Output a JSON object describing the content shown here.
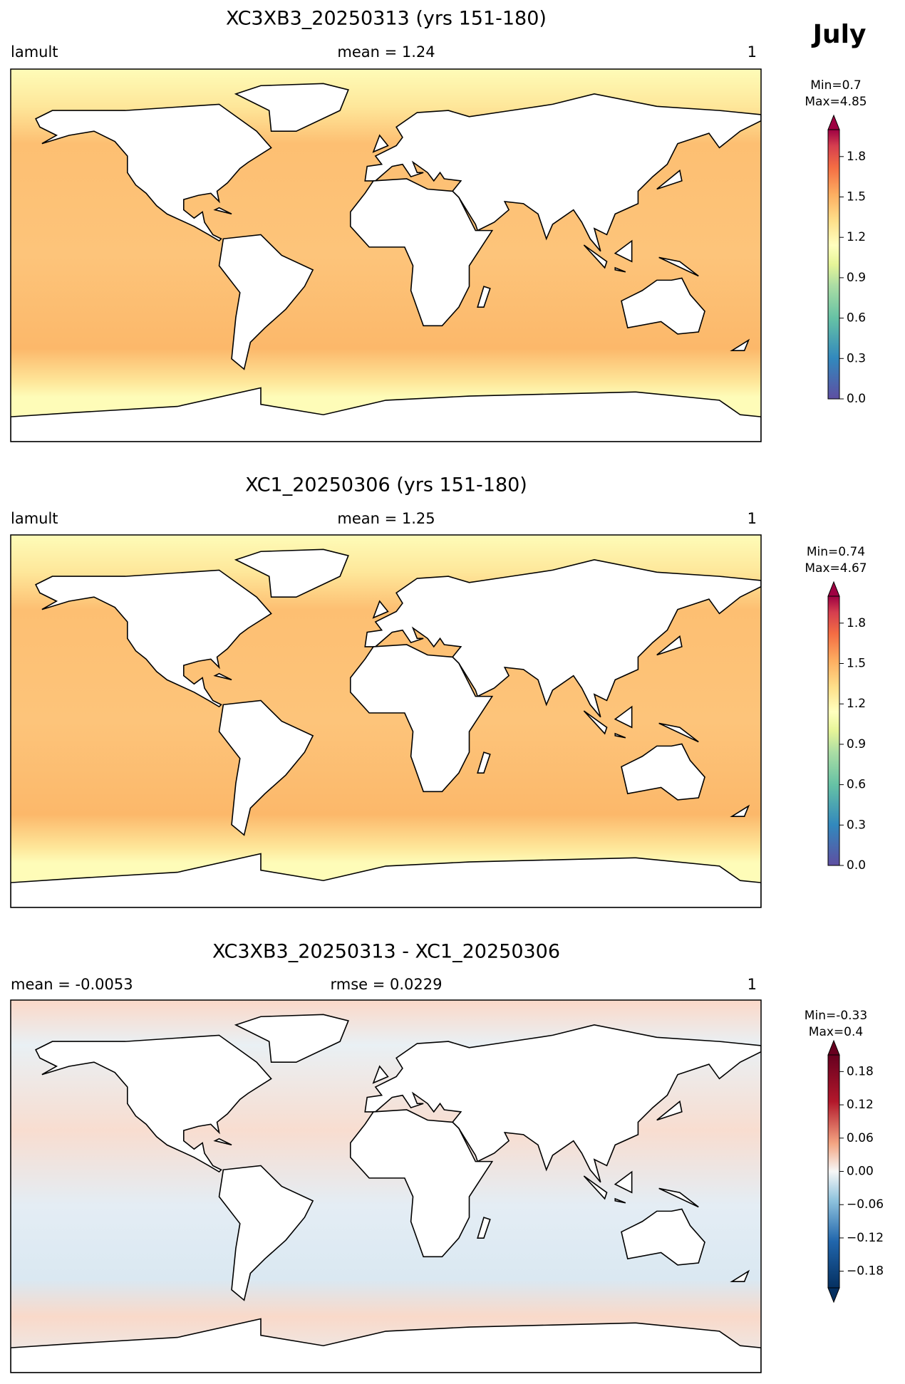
{
  "figure_label": "July",
  "panels": [
    {
      "title": "XC3XB3_20250313 (yrs 151-180)",
      "left_label": "lamult",
      "center_label": "mean = 1.24",
      "right_label": "1",
      "min_label": "Min=0.7",
      "max_label": "Max=4.85",
      "colorbar": {
        "clim": [
          0,
          2
        ],
        "extend": "max",
        "colormap": "spectral",
        "ticks": [
          {
            "value": 0,
            "label": "0.0"
          },
          0.3,
          0.6,
          0.9,
          1.2,
          1.5,
          1.8
        ]
      }
    },
    {
      "title": "XC1_20250306 (yrs 151-180)",
      "left_label": "lamult",
      "center_label": "mean = 1.25",
      "right_label": "1",
      "min_label": "Min=0.74",
      "max_label": "Max=4.67",
      "colorbar": {
        "clim": [
          0,
          2
        ],
        "extend": "max",
        "colormap": "spectral",
        "ticks": [
          {
            "value": 0,
            "label": "0.0"
          },
          0.3,
          0.6,
          0.9,
          1.2,
          1.5,
          1.8
        ]
      }
    },
    {
      "title": "XC3XB3_20250313 - XC1_20250306",
      "left_label": "mean = -0.0053",
      "center_label": "rmse = 0.0229",
      "right_label": "1",
      "min_label": "Min=-0.33",
      "max_label": "Max=0.4",
      "colorbar": {
        "clim": [
          -0.21,
          0.21
        ],
        "extend": "both",
        "colormap": "diverging",
        "ticks": [
          {
            "value": -0.18,
            "label": "−0.18"
          },
          {
            "value": -0.12,
            "label": "−0.12"
          },
          {
            "value": -0.06,
            "label": "−0.06"
          },
          {
            "value": 0,
            "label": "0.00"
          },
          0.06,
          0.12,
          0.18
        ]
      }
    }
  ]
}
